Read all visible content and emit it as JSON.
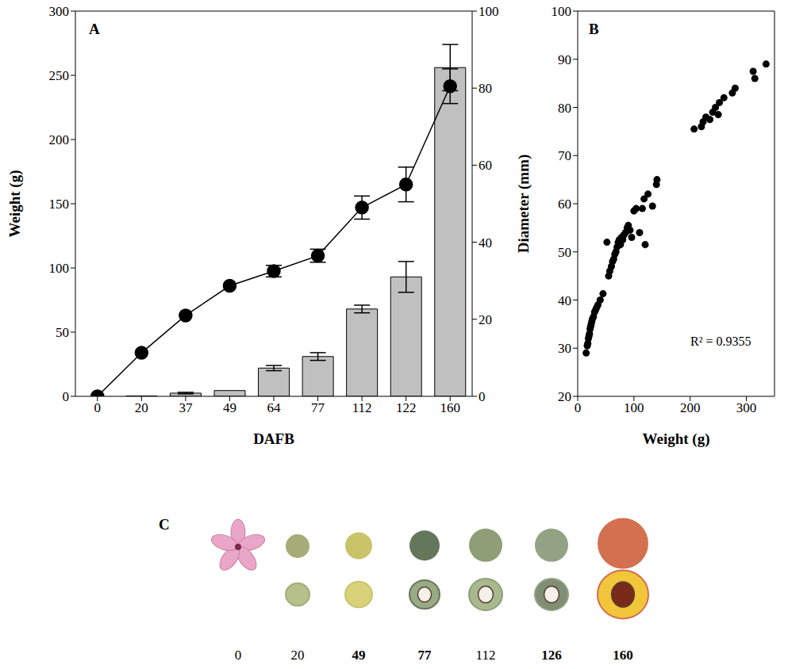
{
  "chart_data": [
    {
      "type": "bar_line",
      "panel": "A",
      "xlabel": "DAFB",
      "ylabel": "Weight (g)",
      "categories": [
        "0",
        "20",
        "37",
        "49",
        "64",
        "77",
        "112",
        "122",
        "160"
      ],
      "series": [
        {
          "type": "bar",
          "color": "#c0c0c0",
          "values": [
            0,
            0.3,
            2.5,
            4.5,
            22,
            31,
            68,
            93,
            256
          ],
          "errors": [
            null,
            null,
            0.6,
            null,
            2,
            3,
            3,
            12,
            18
          ]
        },
        {
          "type": "line",
          "color": "#000000",
          "marker": "circle",
          "axis": "y2",
          "values": [
            0,
            11.3,
            21,
            28.7,
            32.5,
            36.5,
            49,
            55,
            80.5
          ],
          "errors": [
            null,
            null,
            null,
            null,
            1.5,
            1.7,
            3,
            4.5,
            4.5
          ]
        }
      ],
      "ylim": [
        0,
        300
      ],
      "yticks": [
        0,
        50,
        100,
        150,
        200,
        250,
        300
      ],
      "y2lim": [
        0,
        100
      ],
      "y2ticks": [
        0,
        20,
        40,
        60,
        80,
        100
      ]
    },
    {
      "type": "scatter",
      "panel": "B",
      "xlabel": "Weight (g)",
      "ylabel": "Diameter (mm)",
      "annotation": "R² = 0.9355",
      "color": "#000000",
      "marker": "circle",
      "x": [
        15,
        17,
        18,
        19,
        20,
        21,
        22,
        23,
        24,
        25,
        26,
        28,
        30,
        32,
        34,
        36,
        40,
        45,
        52,
        55,
        57,
        60,
        62,
        64,
        66,
        68,
        70,
        72,
        74,
        76,
        78,
        80,
        82,
        85,
        88,
        90,
        93,
        96,
        100,
        104,
        110,
        115,
        118,
        120,
        125,
        133,
        140,
        141,
        207,
        220,
        223,
        228,
        235,
        240,
        245,
        250,
        252,
        260,
        275,
        280,
        312,
        315,
        335
      ],
      "y": [
        29,
        30.5,
        31,
        32,
        32.5,
        33,
        34,
        34.5,
        35,
        35.5,
        36,
        36.5,
        37.5,
        38,
        38.5,
        39,
        40,
        41.3,
        52,
        45,
        46,
        47,
        48,
        48.5,
        49.5,
        50,
        51,
        52,
        52.5,
        51.5,
        53,
        52.5,
        53.5,
        54,
        55,
        55.5,
        54.5,
        53,
        58.5,
        59,
        54,
        59,
        61,
        51.5,
        62,
        59.5,
        64,
        65,
        75.5,
        76,
        77,
        78,
        77.5,
        79,
        80,
        78.5,
        81,
        82,
        83,
        84,
        87.5,
        86,
        89
      ],
      "xlim": [
        0,
        350
      ],
      "xticks": [
        0,
        100,
        200,
        300
      ],
      "ylim": [
        20,
        100
      ],
      "yticks": [
        20,
        30,
        40,
        50,
        60,
        70,
        80,
        90,
        100
      ]
    }
  ],
  "panel_c": {
    "panel": "C",
    "stages": [
      {
        "label": "0",
        "bold": false
      },
      {
        "label": "20",
        "bold": false
      },
      {
        "label": "49",
        "bold": true
      },
      {
        "label": "77",
        "bold": true
      },
      {
        "label": "112",
        "bold": false
      },
      {
        "label": "126",
        "bold": true
      },
      {
        "label": "160",
        "bold": true
      }
    ]
  }
}
